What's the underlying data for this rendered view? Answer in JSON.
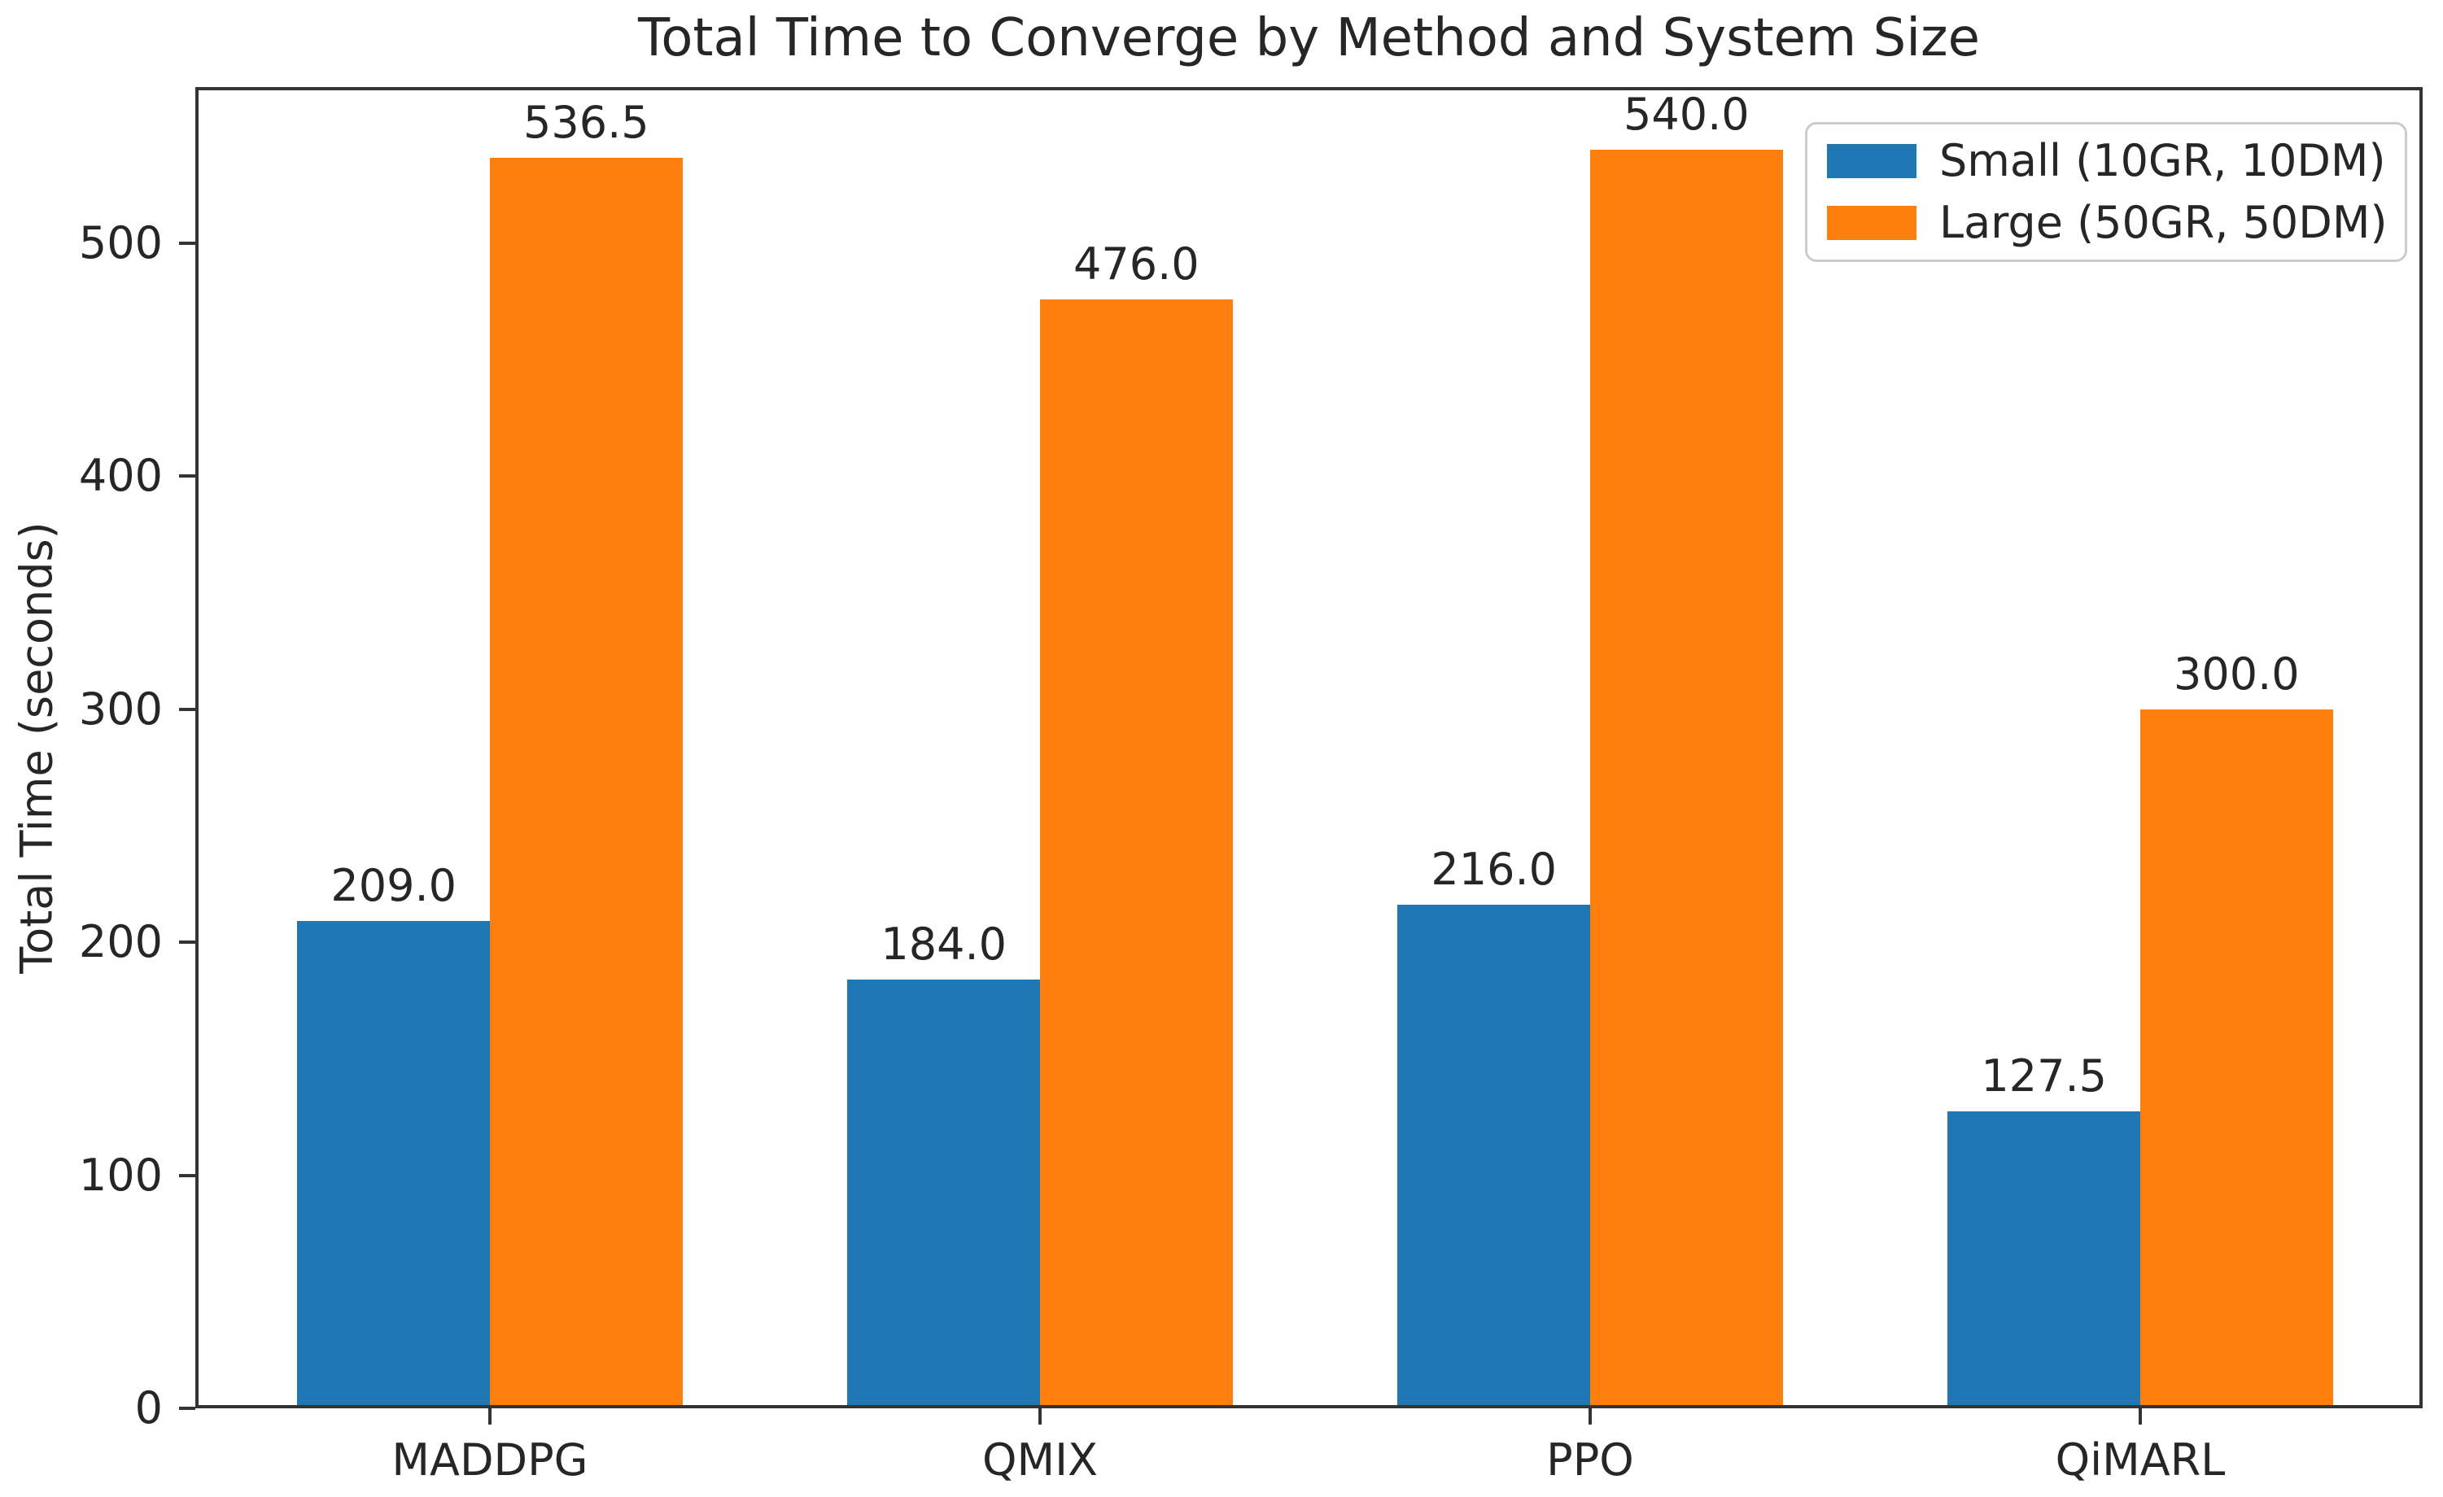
{
  "colors": {
    "small_series": "#1f77b4",
    "large_series": "#ff7f0e",
    "axis": "#333333",
    "text": "#262626",
    "legend_border": "#cccccc",
    "background": "#ffffff"
  },
  "chart_data": {
    "type": "bar",
    "title": "Total Time to Converge by Method and System Size",
    "xlabel": "",
    "ylabel": "Total Time (seconds)",
    "categories": [
      "MADDPG",
      "QMIX",
      "PPO",
      "QiMARL"
    ],
    "series": [
      {
        "name": "Small (10GR, 10DM)",
        "color": "#1f77b4",
        "values": [
          209.0,
          184.0,
          216.0,
          127.5
        ],
        "value_labels": [
          "209.0",
          "184.0",
          "216.0",
          "127.5"
        ]
      },
      {
        "name": "Large (50GR, 50DM)",
        "color": "#ff7f0e",
        "values": [
          536.5,
          476.0,
          540.0,
          300.0
        ],
        "value_labels": [
          "536.5",
          "476.0",
          "540.0",
          "300.0"
        ]
      }
    ],
    "yticks": [
      0,
      100,
      200,
      300,
      400,
      500
    ],
    "ytick_labels": [
      "0",
      "100",
      "200",
      "300",
      "400",
      "500"
    ],
    "ylim": [
      0,
      567
    ],
    "bar_width_units": 0.35,
    "grid": false,
    "legend_position": "upper right"
  }
}
